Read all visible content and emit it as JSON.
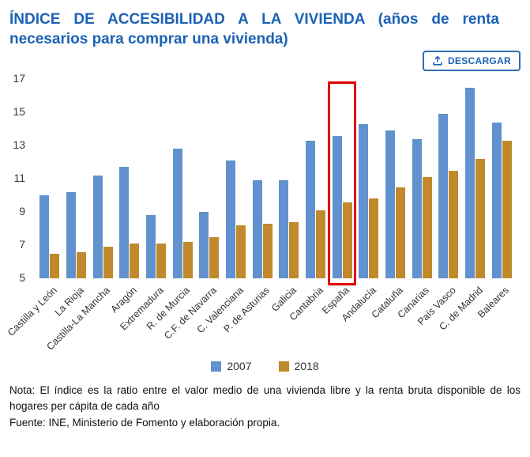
{
  "header": {
    "title": "ÍNDICE DE ACCESIBILIDAD A LA VIVIENDA (años de renta necesarios para comprar una vivienda)",
    "download_label": "DESCARGAR"
  },
  "chart_data": {
    "type": "bar",
    "categories": [
      "Castilla y León",
      "La Rioja",
      "Castilla-La Mancha",
      "Aragón",
      "Extremadura",
      "R. de Murcia",
      "C.F. de Navarra",
      "C. Valenciana",
      "P. de Asturias",
      "Galicia",
      "Cantabria",
      "España",
      "Andalucía",
      "Cataluña",
      "Canarias",
      "País Vasco",
      "C. de Madrid",
      "Baleares"
    ],
    "series": [
      {
        "name": "2007",
        "color": "#6191ce",
        "values": [
          10.0,
          10.2,
          11.2,
          11.7,
          8.8,
          12.8,
          9.0,
          12.1,
          10.9,
          10.9,
          13.3,
          13.6,
          14.3,
          13.9,
          13.4,
          14.9,
          16.5,
          14.4
        ]
      },
      {
        "name": "2018",
        "color": "#c0892c",
        "values": [
          6.5,
          6.6,
          6.9,
          7.1,
          7.1,
          7.2,
          7.5,
          8.2,
          8.3,
          8.4,
          9.1,
          9.6,
          9.8,
          10.5,
          11.1,
          11.5,
          12.2,
          13.3
        ]
      }
    ],
    "ylim": [
      5,
      17
    ],
    "yticks": [
      5,
      7,
      9,
      11,
      13,
      15,
      17
    ],
    "grid": false,
    "legend_position": "bottom",
    "highlight_category": "España",
    "highlight_color": "#e10000",
    "title": "ÍNDICE DE ACCESIBILIDAD A LA VIVIENDA (años de renta necesarios para comprar una vivienda)",
    "xlabel": "",
    "ylabel": ""
  },
  "notes": {
    "nota": "Nota: El índice es la ratio entre el valor medio de una vivienda libre y la renta bruta disponible de los hogares per cápita de cada año",
    "fuente": "Fuente: INE, Ministerio de Fomento y elaboración propia."
  }
}
